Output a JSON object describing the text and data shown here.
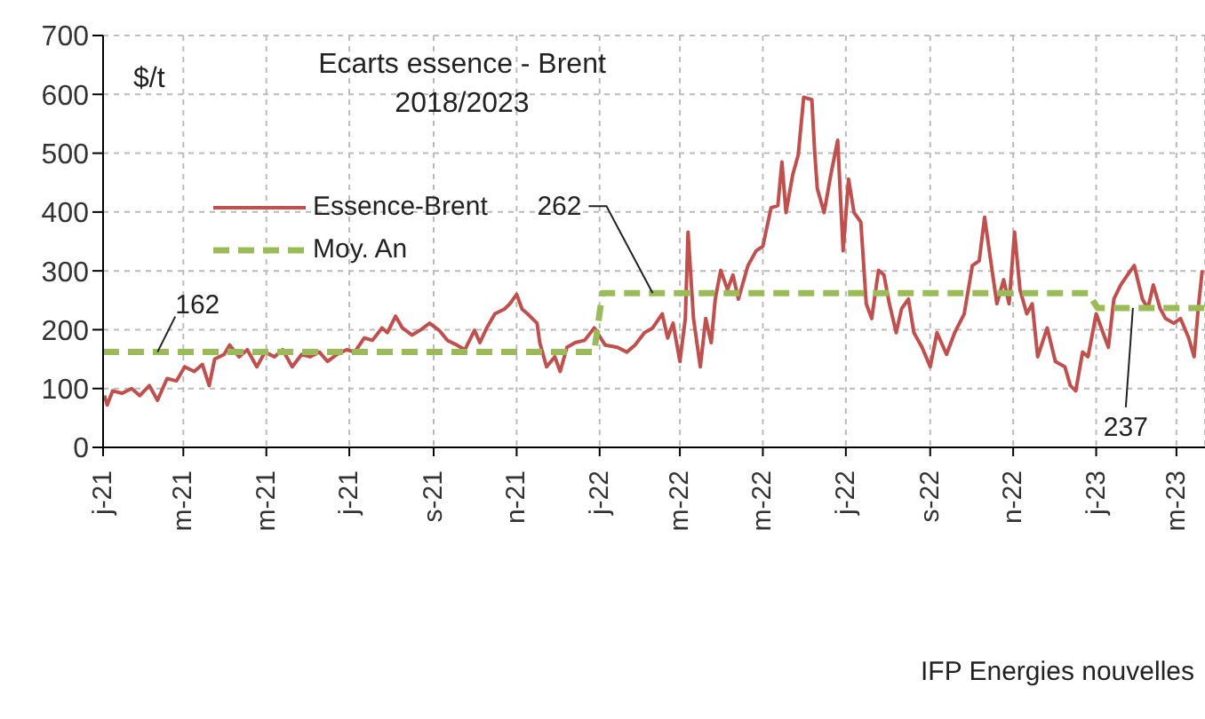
{
  "chart_data": {
    "type": "line",
    "title": "Ecarts essence - Brent",
    "subtitle": "2018/2023",
    "ylabel": "$/t",
    "annotations": [
      {
        "text": "162",
        "x": "2021-02-10",
        "y": 162
      },
      {
        "text": "262",
        "x": "2022-02-09",
        "y": 262
      },
      {
        "text": "237",
        "x": "2023-01-28",
        "y": 237
      },
      "IFP Energies nouvelles"
    ],
    "xlim": [
      "2021-01-01",
      "2023-03-22"
    ],
    "xticks": [
      {
        "value": "2021-01",
        "label": "j-21"
      },
      {
        "value": "2021-03",
        "label": "m-21"
      },
      {
        "value": "2021-05",
        "label": "m-21"
      },
      {
        "value": "2021-07",
        "label": "j-21"
      },
      {
        "value": "2021-09",
        "label": "s-21"
      },
      {
        "value": "2021-11",
        "label": "n-21"
      },
      {
        "value": "2022-01",
        "label": "j-22"
      },
      {
        "value": "2022-03",
        "label": "m-22"
      },
      {
        "value": "2022-05",
        "label": "m-22"
      },
      {
        "value": "2022-07",
        "label": "j-22"
      },
      {
        "value": "2022-09",
        "label": "s-22"
      },
      {
        "value": "2022-11",
        "label": "n-22"
      },
      {
        "value": "2023-01",
        "label": "j-23"
      },
      {
        "value": "2023-03",
        "label": "m-23"
      }
    ],
    "ylim": [
      0,
      700
    ],
    "yticks": [
      0,
      100,
      200,
      300,
      400,
      500,
      600,
      700
    ],
    "grid": true,
    "legend": "top left",
    "series": [
      {
        "name": "Essence-Brent",
        "color": "#c0504d",
        "line_style": "solid",
        "x": [
          "2021-01-02",
          "2021-01-04",
          "2021-01-08",
          "2021-01-15",
          "2021-01-22",
          "2021-01-28",
          "2021-02-04",
          "2021-02-10",
          "2021-02-17",
          "2021-02-24",
          "2021-03-02",
          "2021-03-09",
          "2021-03-15",
          "2021-03-20",
          "2021-03-24",
          "2021-03-31",
          "2021-04-04",
          "2021-04-11",
          "2021-04-17",
          "2021-04-24",
          "2021-04-30",
          "2021-05-07",
          "2021-05-13",
          "2021-05-20",
          "2021-05-27",
          "2021-06-02",
          "2021-06-09",
          "2021-06-15",
          "2021-06-22",
          "2021-06-29",
          "2021-07-05",
          "2021-07-12",
          "2021-07-18",
          "2021-07-25",
          "2021-07-29",
          "2021-08-04",
          "2021-08-09",
          "2021-08-16",
          "2021-08-22",
          "2021-08-29",
          "2021-09-05",
          "2021-09-11",
          "2021-09-18",
          "2021-09-24",
          "2021-10-01",
          "2021-10-05",
          "2021-10-10",
          "2021-10-16",
          "2021-10-23",
          "2021-10-27",
          "2021-11-01",
          "2021-11-05",
          "2021-11-09",
          "2021-11-16",
          "2021-11-18",
          "2021-11-23",
          "2021-11-29",
          "2021-12-03",
          "2021-12-08",
          "2021-12-14",
          "2021-12-21",
          "2021-12-28",
          "2022-01-05",
          "2022-01-14",
          "2022-01-21",
          "2022-01-27",
          "2022-02-03",
          "2022-02-09",
          "2022-02-16",
          "2022-02-20",
          "2022-02-24",
          "2022-03-01",
          "2022-03-05",
          "2022-03-07",
          "2022-03-11",
          "2022-03-16",
          "2022-03-20",
          "2022-03-24",
          "2022-03-27",
          "2022-03-31",
          "2022-04-05",
          "2022-04-09",
          "2022-04-13",
          "2022-04-20",
          "2022-04-26",
          "2022-05-01",
          "2022-05-07",
          "2022-05-12",
          "2022-05-15",
          "2022-05-18",
          "2022-05-23",
          "2022-05-27",
          "2022-05-31",
          "2022-06-06",
          "2022-06-08",
          "2022-06-10",
          "2022-06-15",
          "2022-06-20",
          "2022-06-25",
          "2022-06-29",
          "2022-07-03",
          "2022-07-07",
          "2022-07-12",
          "2022-07-16",
          "2022-07-20",
          "2022-07-25",
          "2022-07-29",
          "2022-08-02",
          "2022-08-07",
          "2022-08-11",
          "2022-08-16",
          "2022-08-20",
          "2022-08-26",
          "2022-09-01",
          "2022-09-06",
          "2022-09-13",
          "2022-09-19",
          "2022-09-26",
          "2022-10-02",
          "2022-10-07",
          "2022-10-11",
          "2022-10-15",
          "2022-10-20",
          "2022-10-25",
          "2022-10-29",
          "2022-11-02",
          "2022-11-06",
          "2022-11-11",
          "2022-11-15",
          "2022-11-19",
          "2022-11-26",
          "2022-12-02",
          "2022-12-09",
          "2022-12-13",
          "2022-12-17",
          "2022-12-22",
          "2022-12-26",
          "2023-01-01",
          "2023-01-06",
          "2023-01-10",
          "2023-01-14",
          "2023-01-19",
          "2023-01-24",
          "2023-01-29",
          "2023-02-04",
          "2023-02-08",
          "2023-02-12",
          "2023-02-17",
          "2023-02-21",
          "2023-02-27",
          "2023-03-04",
          "2023-03-10",
          "2023-03-14",
          "2023-03-17",
          "2023-03-20"
        ],
        "values": [
          88,
          72,
          96,
          92,
          100,
          88,
          105,
          80,
          117,
          113,
          137,
          129,
          141,
          105,
          150,
          158,
          174,
          154,
          166,
          137,
          162,
          154,
          166,
          137,
          158,
          154,
          162,
          146,
          158,
          166,
          162,
          186,
          182,
          203,
          195,
          223,
          203,
          191,
          199,
          211,
          199,
          182,
          174,
          166,
          199,
          178,
          203,
          227,
          235,
          244,
          260,
          235,
          227,
          211,
          178,
          137,
          154,
          129,
          170,
          178,
          182,
          203,
          174,
          170,
          162,
          174,
          195,
          203,
          227,
          186,
          211,
          146,
          219,
          366,
          219,
          137,
          219,
          178,
          252,
          301,
          268,
          293,
          252,
          309,
          334,
          342,
          407,
          411,
          485,
          399,
          464,
          497,
          595,
          591,
          505,
          440,
          399,
          464,
          522,
          334,
          456,
          399,
          383,
          244,
          219,
          301,
          293,
          244,
          195,
          236,
          252,
          195,
          170,
          137,
          195,
          158,
          195,
          227,
          309,
          317,
          391,
          325,
          244,
          285,
          244,
          366,
          268,
          227,
          244,
          154,
          203,
          146,
          137,
          105,
          96,
          162,
          154,
          227,
          195,
          170,
          252,
          276,
          293,
          309,
          252,
          236,
          276,
          236,
          219,
          211,
          219,
          186,
          154,
          236,
          301
        ]
      },
      {
        "name": "Moy. An",
        "color": "#9bbb59",
        "line_style": "dashed",
        "x": [
          "2021-01-01",
          "2021-12-28",
          "2022-01-03",
          "2022-12-26",
          "2023-01-02",
          "2023-03-22"
        ],
        "values": [
          162,
          162,
          262,
          262,
          237,
          237
        ]
      }
    ]
  }
}
